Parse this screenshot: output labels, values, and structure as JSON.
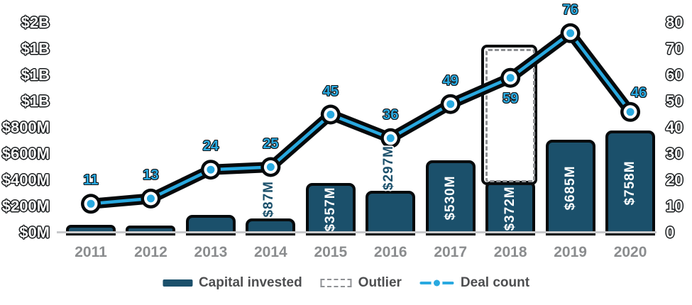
{
  "chart_data": {
    "type": "combo_bar_line",
    "title": "",
    "categories": [
      "2011",
      "2012",
      "2013",
      "2014",
      "2015",
      "2016",
      "2017",
      "2018",
      "2019",
      "2020"
    ],
    "series": [
      {
        "name": "Capital invested",
        "chart": "bar",
        "unit": "USD millions",
        "values_musd": [
          40,
          32,
          115,
          87,
          357,
          297,
          530,
          372,
          685,
          758
        ],
        "bar_labels": [
          "",
          "",
          "",
          "$87M",
          "$357M",
          "$297M",
          "$530M",
          "$372M",
          "$685M",
          "$758M"
        ],
        "bar_label_placement": [
          "none",
          "none",
          "none",
          "above",
          "inside",
          "above",
          "inside",
          "inside",
          "inside",
          "inside"
        ],
        "note": "2011-2013 values unlabeled on chart, estimated from bar heights"
      },
      {
        "name": "Deal count",
        "chart": "line",
        "values": [
          11,
          13,
          24,
          25,
          45,
          36,
          49,
          59,
          76,
          46
        ],
        "point_label_positions": [
          "above",
          "above",
          "above",
          "above",
          "above",
          "above",
          "above",
          "below",
          "above",
          "above-right"
        ]
      }
    ],
    "outlier_box": {
      "category": "2018",
      "top_value_musd": 1400,
      "bottom_value_musd": 372
    },
    "axes": {
      "left": {
        "ticks_top_to_bottom": [
          "$2B",
          "$1B",
          "$1B",
          "$1B",
          "$800M",
          "$600M",
          "$400M",
          "$200M",
          "$0M"
        ],
        "min_musd": 0,
        "max_musd": 1600
      },
      "right": {
        "ticks_top_to_bottom": [
          "80",
          "70",
          "60",
          "50",
          "40",
          "30",
          "20",
          "10",
          "0"
        ],
        "min": 0,
        "max": 80
      }
    },
    "legend": [
      {
        "label": "Capital invested",
        "swatch": "bar"
      },
      {
        "label": "Outlier",
        "swatch": "dashed-box"
      },
      {
        "label": "Deal count",
        "swatch": "line-marker"
      }
    ],
    "grid": "off",
    "legend_position": "bottom-center",
    "colors": {
      "bar_fill": "#1B506B",
      "line": "#29A9E0",
      "outline_black": "#060A0C",
      "axis_label": "#FFFFFF",
      "year_label": "#8A8C8E",
      "count_label": "#2AA9E0",
      "bar_label_inside": "#FFFFFF",
      "bar_label_above": "#1B506B",
      "legend_text": "#4D4E50",
      "dashed_gray": "#8F9194",
      "baseline": "#C8C9CB"
    }
  }
}
